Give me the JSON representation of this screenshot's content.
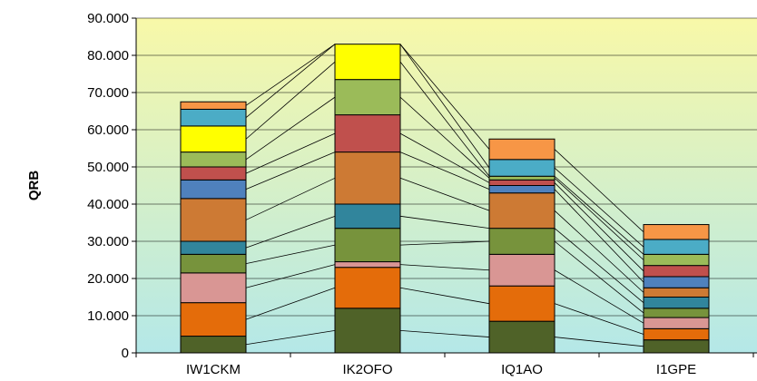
{
  "chart_data": {
    "type": "bar",
    "stacked": true,
    "ylabel": "QRB",
    "xlabel": "",
    "ylim": [
      0,
      90000
    ],
    "yticks": [
      0,
      10000,
      20000,
      30000,
      40000,
      50000,
      60000,
      70000,
      80000,
      90000
    ],
    "ytick_labels": [
      "0",
      "10.000",
      "20.000",
      "30.000",
      "40.000",
      "50.000",
      "60.000",
      "70.000",
      "80.000",
      "90.000"
    ],
    "categories": [
      "IW1CKM",
      "IK2OFO",
      "IQ1AO",
      "I1GPE"
    ],
    "grid": true,
    "background_gradient": [
      "#f8f8a8",
      "#b4e8e8"
    ],
    "series_connectors": true,
    "series": [
      {
        "color": "#4f6228",
        "values": [
          4500,
          12000,
          8500,
          3500
        ]
      },
      {
        "color": "#e46c0a",
        "values": [
          9000,
          11000,
          9500,
          3000
        ]
      },
      {
        "color": "#d99694",
        "values": [
          8000,
          1500,
          8500,
          3000
        ]
      },
      {
        "color": "#77933c",
        "values": [
          5000,
          9000,
          7000,
          2500
        ]
      },
      {
        "color": "#31859c",
        "values": [
          3500,
          6500,
          0,
          3000
        ]
      },
      {
        "color": "#cd7a34",
        "values": [
          11500,
          14000,
          9500,
          2500
        ]
      },
      {
        "color": "#4f81bd",
        "values": [
          5000,
          0,
          2000,
          3000
        ]
      },
      {
        "color": "#c0504d",
        "values": [
          3500,
          10000,
          1500,
          3000
        ]
      },
      {
        "color": "#9bbb59",
        "values": [
          4000,
          9500,
          1000,
          3000
        ]
      },
      {
        "color": "#ffff00",
        "values": [
          7000,
          9500,
          0,
          0
        ]
      },
      {
        "color": "#4bacc6",
        "values": [
          4500,
          0,
          4500,
          4000
        ]
      },
      {
        "color": "#f79646",
        "values": [
          2000,
          0,
          5500,
          4000
        ]
      }
    ]
  }
}
